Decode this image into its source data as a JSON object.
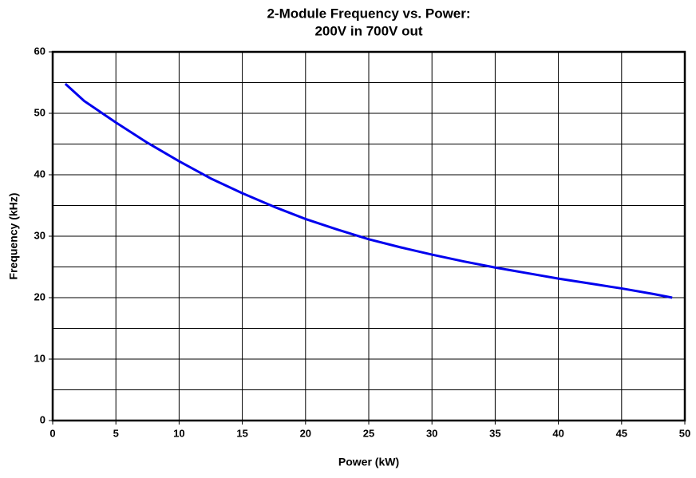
{
  "chart_data": {
    "type": "line",
    "title": [
      "2-Module Frequency vs. Power:",
      "200V in 700V out"
    ],
    "xlabel": "Power (kW)",
    "ylabel": "Frequency (kHz)",
    "series": [
      {
        "color": "#0000ee",
        "x": [
          1,
          2.5,
          5,
          7.5,
          10,
          12.5,
          15,
          17.5,
          20,
          22.5,
          25,
          27.5,
          30,
          32.5,
          35,
          37.5,
          40,
          42.5,
          45,
          47.5,
          49
        ],
        "values": [
          54.8,
          52,
          48.5,
          45.2,
          42.2,
          39.4,
          37,
          34.8,
          32.8,
          31.1,
          29.5,
          28.2,
          27,
          25.9,
          24.9,
          24,
          23.1,
          22.3,
          21.5,
          20.6,
          20
        ]
      }
    ],
    "xlim": [
      0,
      50
    ],
    "xticks": [
      0,
      5,
      10,
      15,
      20,
      25,
      30,
      35,
      40,
      45,
      50
    ],
    "ylim": [
      0,
      60
    ],
    "yticks": [
      0,
      10,
      20,
      30,
      40,
      50,
      60
    ],
    "yminorticks": [
      5,
      15,
      25,
      35,
      45,
      55
    ],
    "grid": true
  }
}
